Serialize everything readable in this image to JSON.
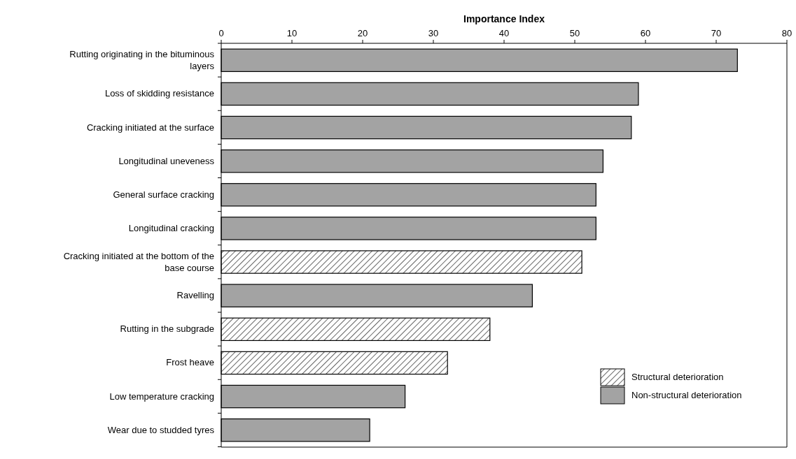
{
  "chart_data": {
    "type": "bar",
    "orientation": "horizontal",
    "xlabel": "Importance Index",
    "categories": [
      "Rutting originating in the bituminous layers",
      "Loss of skidding resistance",
      "Cracking initiated at the surface",
      "Longitudinal uneveness",
      "General surface cracking",
      "Longitudinal cracking",
      "Cracking initiated at the bottom of the base course",
      "Ravelling",
      "Rutting in the subgrade",
      "Frost heave",
      "Low temperature cracking",
      "Wear due to studded tyres"
    ],
    "series": [
      {
        "name": "Structural deterioration",
        "color": "#000000",
        "values": [
          null,
          null,
          null,
          null,
          null,
          null,
          51,
          null,
          38,
          32,
          null,
          null
        ]
      },
      {
        "name": "Non-structural deterioration",
        "color": "#a3a3a3",
        "values": [
          73,
          59,
          58,
          54,
          53,
          53,
          null,
          44,
          null,
          null,
          26,
          21
        ]
      }
    ],
    "xlim": [
      0,
      80
    ],
    "xticks": [
      0,
      10,
      20,
      30,
      40,
      50,
      60,
      70,
      80
    ],
    "grid": false,
    "legend": "bottom right"
  }
}
